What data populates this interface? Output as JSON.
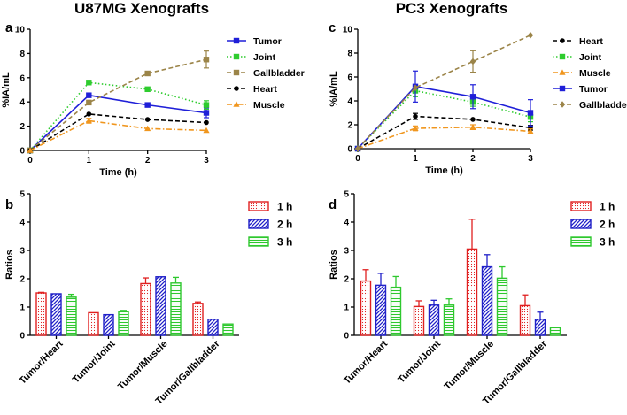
{
  "figure": {
    "title_left": "U87MG Xenografts",
    "title_right": "PC3 Xenografts"
  },
  "chart_data": [
    {
      "panel": "a",
      "type": "line",
      "title": "U87MG Xenografts",
      "xlabel": "Time (h)",
      "ylabel": "%IA/mL",
      "x": [
        0,
        1,
        2,
        3
      ],
      "xlim": [
        0,
        3
      ],
      "ylim": [
        0,
        10
      ],
      "yticks": [
        0,
        2,
        4,
        6,
        8,
        10
      ],
      "legend_position": "top-right",
      "series": [
        {
          "name": "Tumor",
          "color": "#1f1fd8",
          "marker": "square",
          "dash": "solid",
          "values": [
            0,
            4.55,
            3.75,
            3.1
          ],
          "errors": [
            0,
            0,
            0,
            0.4
          ]
        },
        {
          "name": "Joint",
          "color": "#2ecc2e",
          "marker": "square",
          "dash": "dotted",
          "values": [
            0,
            5.6,
            5.05,
            3.75
          ],
          "errors": [
            0,
            0.15,
            0,
            0.35
          ]
        },
        {
          "name": "Gallbladder",
          "color": "#9b8448",
          "marker": "square",
          "dash": "dashed",
          "values": [
            0,
            3.95,
            6.35,
            7.5
          ],
          "errors": [
            0,
            0,
            0,
            0.7
          ]
        },
        {
          "name": "Heart",
          "color": "#000000",
          "marker": "circle",
          "dash": "dashed",
          "values": [
            0,
            3.0,
            2.55,
            2.3
          ],
          "errors": [
            0,
            0,
            0,
            0
          ]
        },
        {
          "name": "Muscle",
          "color": "#f0961e",
          "marker": "triangle",
          "dash": "dashdot",
          "values": [
            0,
            2.45,
            1.8,
            1.65
          ],
          "errors": [
            0,
            0.2,
            0,
            0
          ]
        }
      ]
    },
    {
      "panel": "c",
      "type": "line",
      "title": "PC3 Xenografts",
      "xlabel": "Time (h)",
      "ylabel": "%IA/mL",
      "x": [
        0,
        1,
        2,
        3
      ],
      "xlim": [
        0,
        3
      ],
      "ylim": [
        0,
        10
      ],
      "yticks": [
        0,
        2,
        4,
        6,
        8,
        10
      ],
      "legend_position": "top-right",
      "series": [
        {
          "name": "Heart",
          "color": "#000000",
          "marker": "circle",
          "dash": "dashed",
          "values": [
            0,
            2.7,
            2.45,
            1.75
          ],
          "errors": [
            0,
            0.25,
            0,
            0.2
          ]
        },
        {
          "name": "Joint",
          "color": "#2ecc2e",
          "marker": "square",
          "dash": "dotted",
          "values": [
            0,
            4.85,
            3.9,
            2.65
          ],
          "errors": [
            0,
            0.5,
            0.35,
            0.4
          ]
        },
        {
          "name": "Muscle",
          "color": "#f0961e",
          "marker": "triangle",
          "dash": "dashdot",
          "values": [
            0,
            1.7,
            1.8,
            1.45
          ],
          "errors": [
            0,
            0.2,
            0.2,
            0.2
          ]
        },
        {
          "name": "Tumor",
          "color": "#1f1fd8",
          "marker": "square",
          "dash": "solid",
          "values": [
            0,
            5.2,
            4.35,
            3.0
          ],
          "errors": [
            0,
            1.3,
            1.0,
            1.1
          ]
        },
        {
          "name": "Gallbladder",
          "color": "#9b8448",
          "marker": "diamond",
          "dash": "dashed",
          "values": [
            0,
            5.1,
            7.3,
            9.5
          ],
          "errors": [
            0,
            0,
            0.9,
            0
          ]
        }
      ]
    },
    {
      "panel": "b",
      "type": "bar",
      "xlabel": "",
      "ylabel": "Ratios",
      "ylim": [
        0,
        5
      ],
      "yticks": [
        0,
        1,
        2,
        3,
        4,
        5
      ],
      "categories": [
        "Tumor/Heart",
        "Tumor/Joint",
        "Tumor/Muscle",
        "Tumor/Gallbladder"
      ],
      "legend_position": "top-right",
      "series": [
        {
          "name": "1 h",
          "color": "#e02020",
          "pattern": "dots",
          "values": [
            1.5,
            0.8,
            1.83,
            1.13
          ],
          "errors": [
            0.02,
            0,
            0.2,
            0.05
          ]
        },
        {
          "name": "2 h",
          "color": "#2020c8",
          "pattern": "diagonal",
          "values": [
            1.47,
            0.73,
            2.07,
            0.57
          ],
          "errors": [
            0,
            0,
            0,
            0
          ]
        },
        {
          "name": "3 h",
          "color": "#2ec82e",
          "pattern": "horizontal",
          "values": [
            1.35,
            0.85,
            1.85,
            0.4
          ],
          "errors": [
            0.1,
            0.03,
            0.2,
            0
          ]
        }
      ]
    },
    {
      "panel": "d",
      "type": "bar",
      "xlabel": "",
      "ylabel": "Ratios",
      "ylim": [
        0,
        5
      ],
      "yticks": [
        0,
        1,
        2,
        3,
        4,
        5
      ],
      "categories": [
        "Tumor/Heart",
        "Tumor/Joint",
        "Tumor/Muscle",
        "Tumor/Gallbladder"
      ],
      "legend_position": "top-right",
      "series": [
        {
          "name": "1 h",
          "color": "#e02020",
          "pattern": "dots",
          "values": [
            1.92,
            1.02,
            3.05,
            1.05
          ],
          "errors": [
            0.4,
            0.2,
            1.05,
            0.38
          ]
        },
        {
          "name": "2 h",
          "color": "#2020c8",
          "pattern": "diagonal",
          "values": [
            1.77,
            1.07,
            2.42,
            0.57
          ],
          "errors": [
            0.42,
            0.17,
            0.43,
            0.25
          ]
        },
        {
          "name": "3 h",
          "color": "#2ec82e",
          "pattern": "horizontal",
          "values": [
            1.7,
            1.07,
            2.02,
            0.28
          ],
          "errors": [
            0.38,
            0.22,
            0.4,
            0
          ]
        }
      ]
    }
  ]
}
